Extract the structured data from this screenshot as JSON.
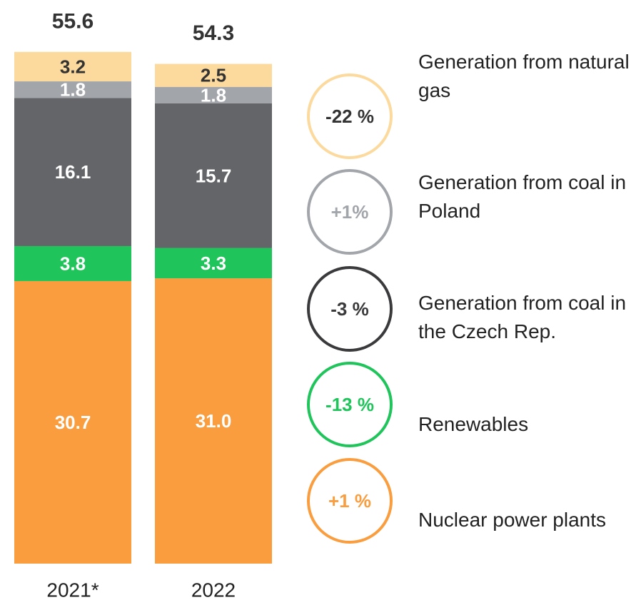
{
  "chart_data": {
    "type": "stacked_bar",
    "categories": [
      "2021*",
      "2022"
    ],
    "totals": [
      55.6,
      54.3
    ],
    "series": [
      {
        "name": "Nuclear power plants",
        "color": "#f99d3e",
        "label_color": "#ffffff",
        "change_color": "#f99d3e",
        "values": [
          30.7,
          31.0
        ],
        "value_labels": [
          "30.7",
          "31.0"
        ],
        "change": {
          "value": 1,
          "label": "+1 %"
        }
      },
      {
        "name": "Renewables",
        "color": "#1fc45a",
        "label_color": "#ffffff",
        "change_color": "#1fc45a",
        "values": [
          3.8,
          3.3
        ],
        "value_labels": [
          "3.8",
          "3.3"
        ],
        "change": {
          "value": -13,
          "label": "-13 %"
        }
      },
      {
        "name": "Generation from coal in the Czech Rep.",
        "color": "#636569",
        "label_color": "#ffffff",
        "change_color": "#3a3a3c",
        "values": [
          16.1,
          15.7
        ],
        "value_labels": [
          "16.1",
          "15.7"
        ],
        "change": {
          "value": -3,
          "label": "-3 %"
        }
      },
      {
        "name": "Generation from coal in Poland",
        "color": "#a2a5aa",
        "label_color": "#ffffff",
        "change_color": "#a2a5aa",
        "values": [
          1.8,
          1.8
        ],
        "value_labels": [
          "1.8",
          "1.8"
        ],
        "change": {
          "value": 1,
          "label": "+1%"
        }
      },
      {
        "name": "Generation from natural gas",
        "color": "#fcd99c",
        "label_color": "#333333",
        "change_color": "#fcd99c",
        "values": [
          3.2,
          2.5
        ],
        "value_labels": [
          "3.2",
          "2.5"
        ],
        "change": {
          "value": -22,
          "label": "-22 %"
        }
      }
    ]
  }
}
